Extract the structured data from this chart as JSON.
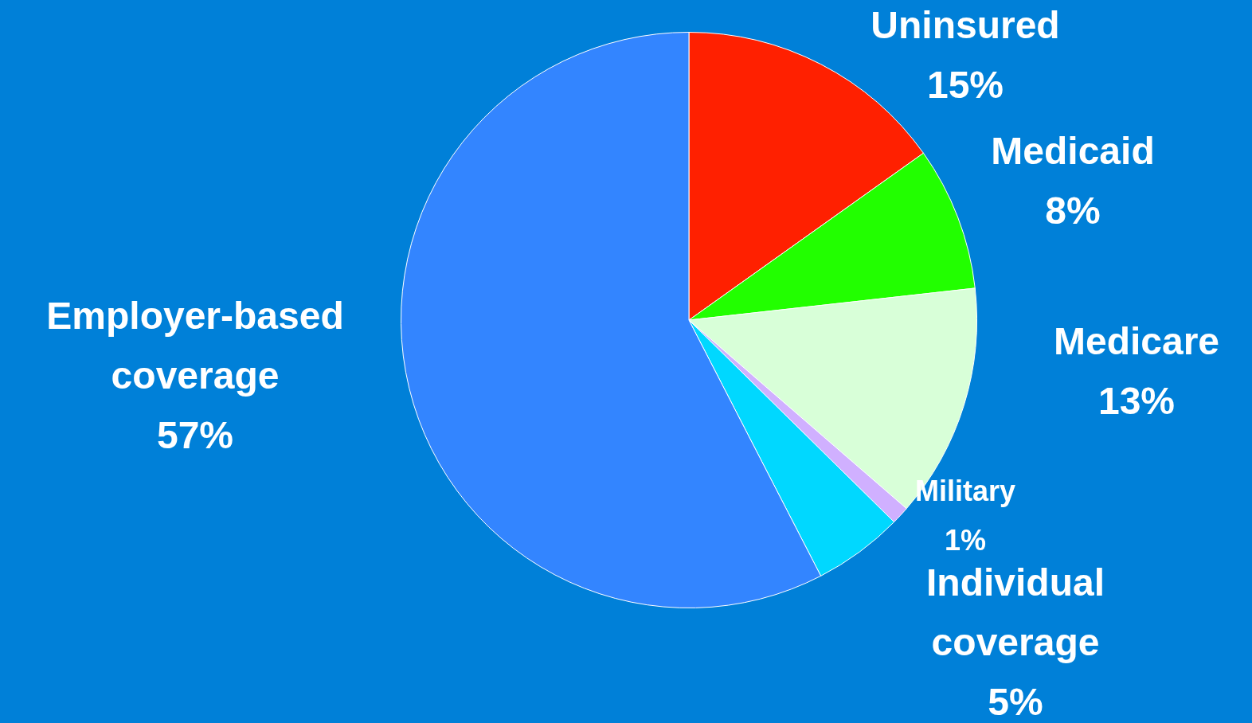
{
  "chart_data": {
    "type": "pie",
    "categories": [
      "Uninsured",
      "Medicaid",
      "Medicare",
      "Military",
      "Individual coverage",
      "Employer-based coverage"
    ],
    "values": [
      15,
      8,
      13,
      1,
      5,
      57
    ],
    "value_labels": [
      "15%",
      "8%",
      "13%",
      "1%",
      "5%",
      "57%"
    ],
    "colors": [
      "#ff2000",
      "#22ff00",
      "#d8ffd8",
      "#d0b0ff",
      "#00d8ff",
      "#3385ff"
    ],
    "legend": false
  }
}
